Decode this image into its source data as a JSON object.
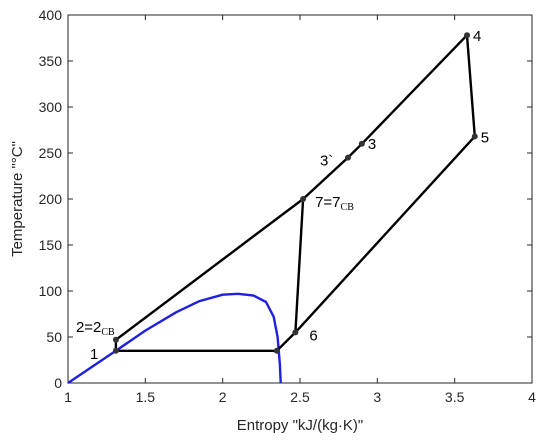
{
  "chart_data": {
    "type": "line",
    "xlabel": "Entropy \"kJ/(kg·K)\"",
    "ylabel": "Temperature \"°C\"",
    "xlim": [
      1,
      4
    ],
    "ylim": [
      0,
      400
    ],
    "x_ticks": [
      "1",
      "1.5",
      "2",
      "2.5",
      "3",
      "3.5",
      "4"
    ],
    "y_ticks": [
      "0",
      "50",
      "100",
      "150",
      "200",
      "250",
      "300",
      "350",
      "400"
    ],
    "grid": false,
    "colors": {
      "cycle": "#000000",
      "saturation": "#1f1fe0",
      "axis": "#262626"
    },
    "series": [
      {
        "role": "saturation-dome",
        "points": [
          [
            1.0,
            0
          ],
          [
            1.15,
            17
          ],
          [
            1.31,
            35
          ],
          [
            1.5,
            57
          ],
          [
            1.7,
            77
          ],
          [
            1.85,
            89
          ],
          [
            2.0,
            96
          ],
          [
            2.1,
            97
          ],
          [
            2.2,
            95
          ],
          [
            2.28,
            88
          ],
          [
            2.33,
            72
          ],
          [
            2.355,
            50
          ],
          [
            2.37,
            20
          ],
          [
            2.375,
            0
          ]
        ]
      },
      {
        "role": "cycle",
        "points": [
          [
            1.31,
            35
          ],
          [
            2.35,
            35
          ],
          [
            2.47,
            55
          ],
          [
            3.63,
            268
          ],
          [
            3.58,
            378
          ],
          [
            2.9,
            260
          ],
          [
            2.81,
            245
          ],
          [
            2.52,
            200
          ],
          [
            1.31,
            47
          ],
          [
            1.31,
            35
          ]
        ]
      },
      {
        "role": "cycle-internal",
        "points": [
          [
            2.52,
            200
          ],
          [
            2.47,
            55
          ]
        ]
      }
    ],
    "state_points": [
      {
        "x": 1.31,
        "y": 35,
        "label": "1",
        "sub": ""
      },
      {
        "x": 1.31,
        "y": 47,
        "label": "2=2",
        "sub": "CB"
      },
      {
        "x": 2.81,
        "y": 245,
        "label": "3`",
        "sub": ""
      },
      {
        "x": 2.9,
        "y": 260,
        "label": "3",
        "sub": ""
      },
      {
        "x": 3.58,
        "y": 378,
        "label": "4",
        "sub": ""
      },
      {
        "x": 3.63,
        "y": 268,
        "label": "5",
        "sub": ""
      },
      {
        "x": 2.47,
        "y": 55,
        "label": "6",
        "sub": ""
      },
      {
        "x": 2.52,
        "y": 200,
        "label": "7=7",
        "sub": "CB"
      },
      {
        "x": 2.35,
        "y": 35,
        "label": "",
        "sub": ""
      }
    ]
  }
}
